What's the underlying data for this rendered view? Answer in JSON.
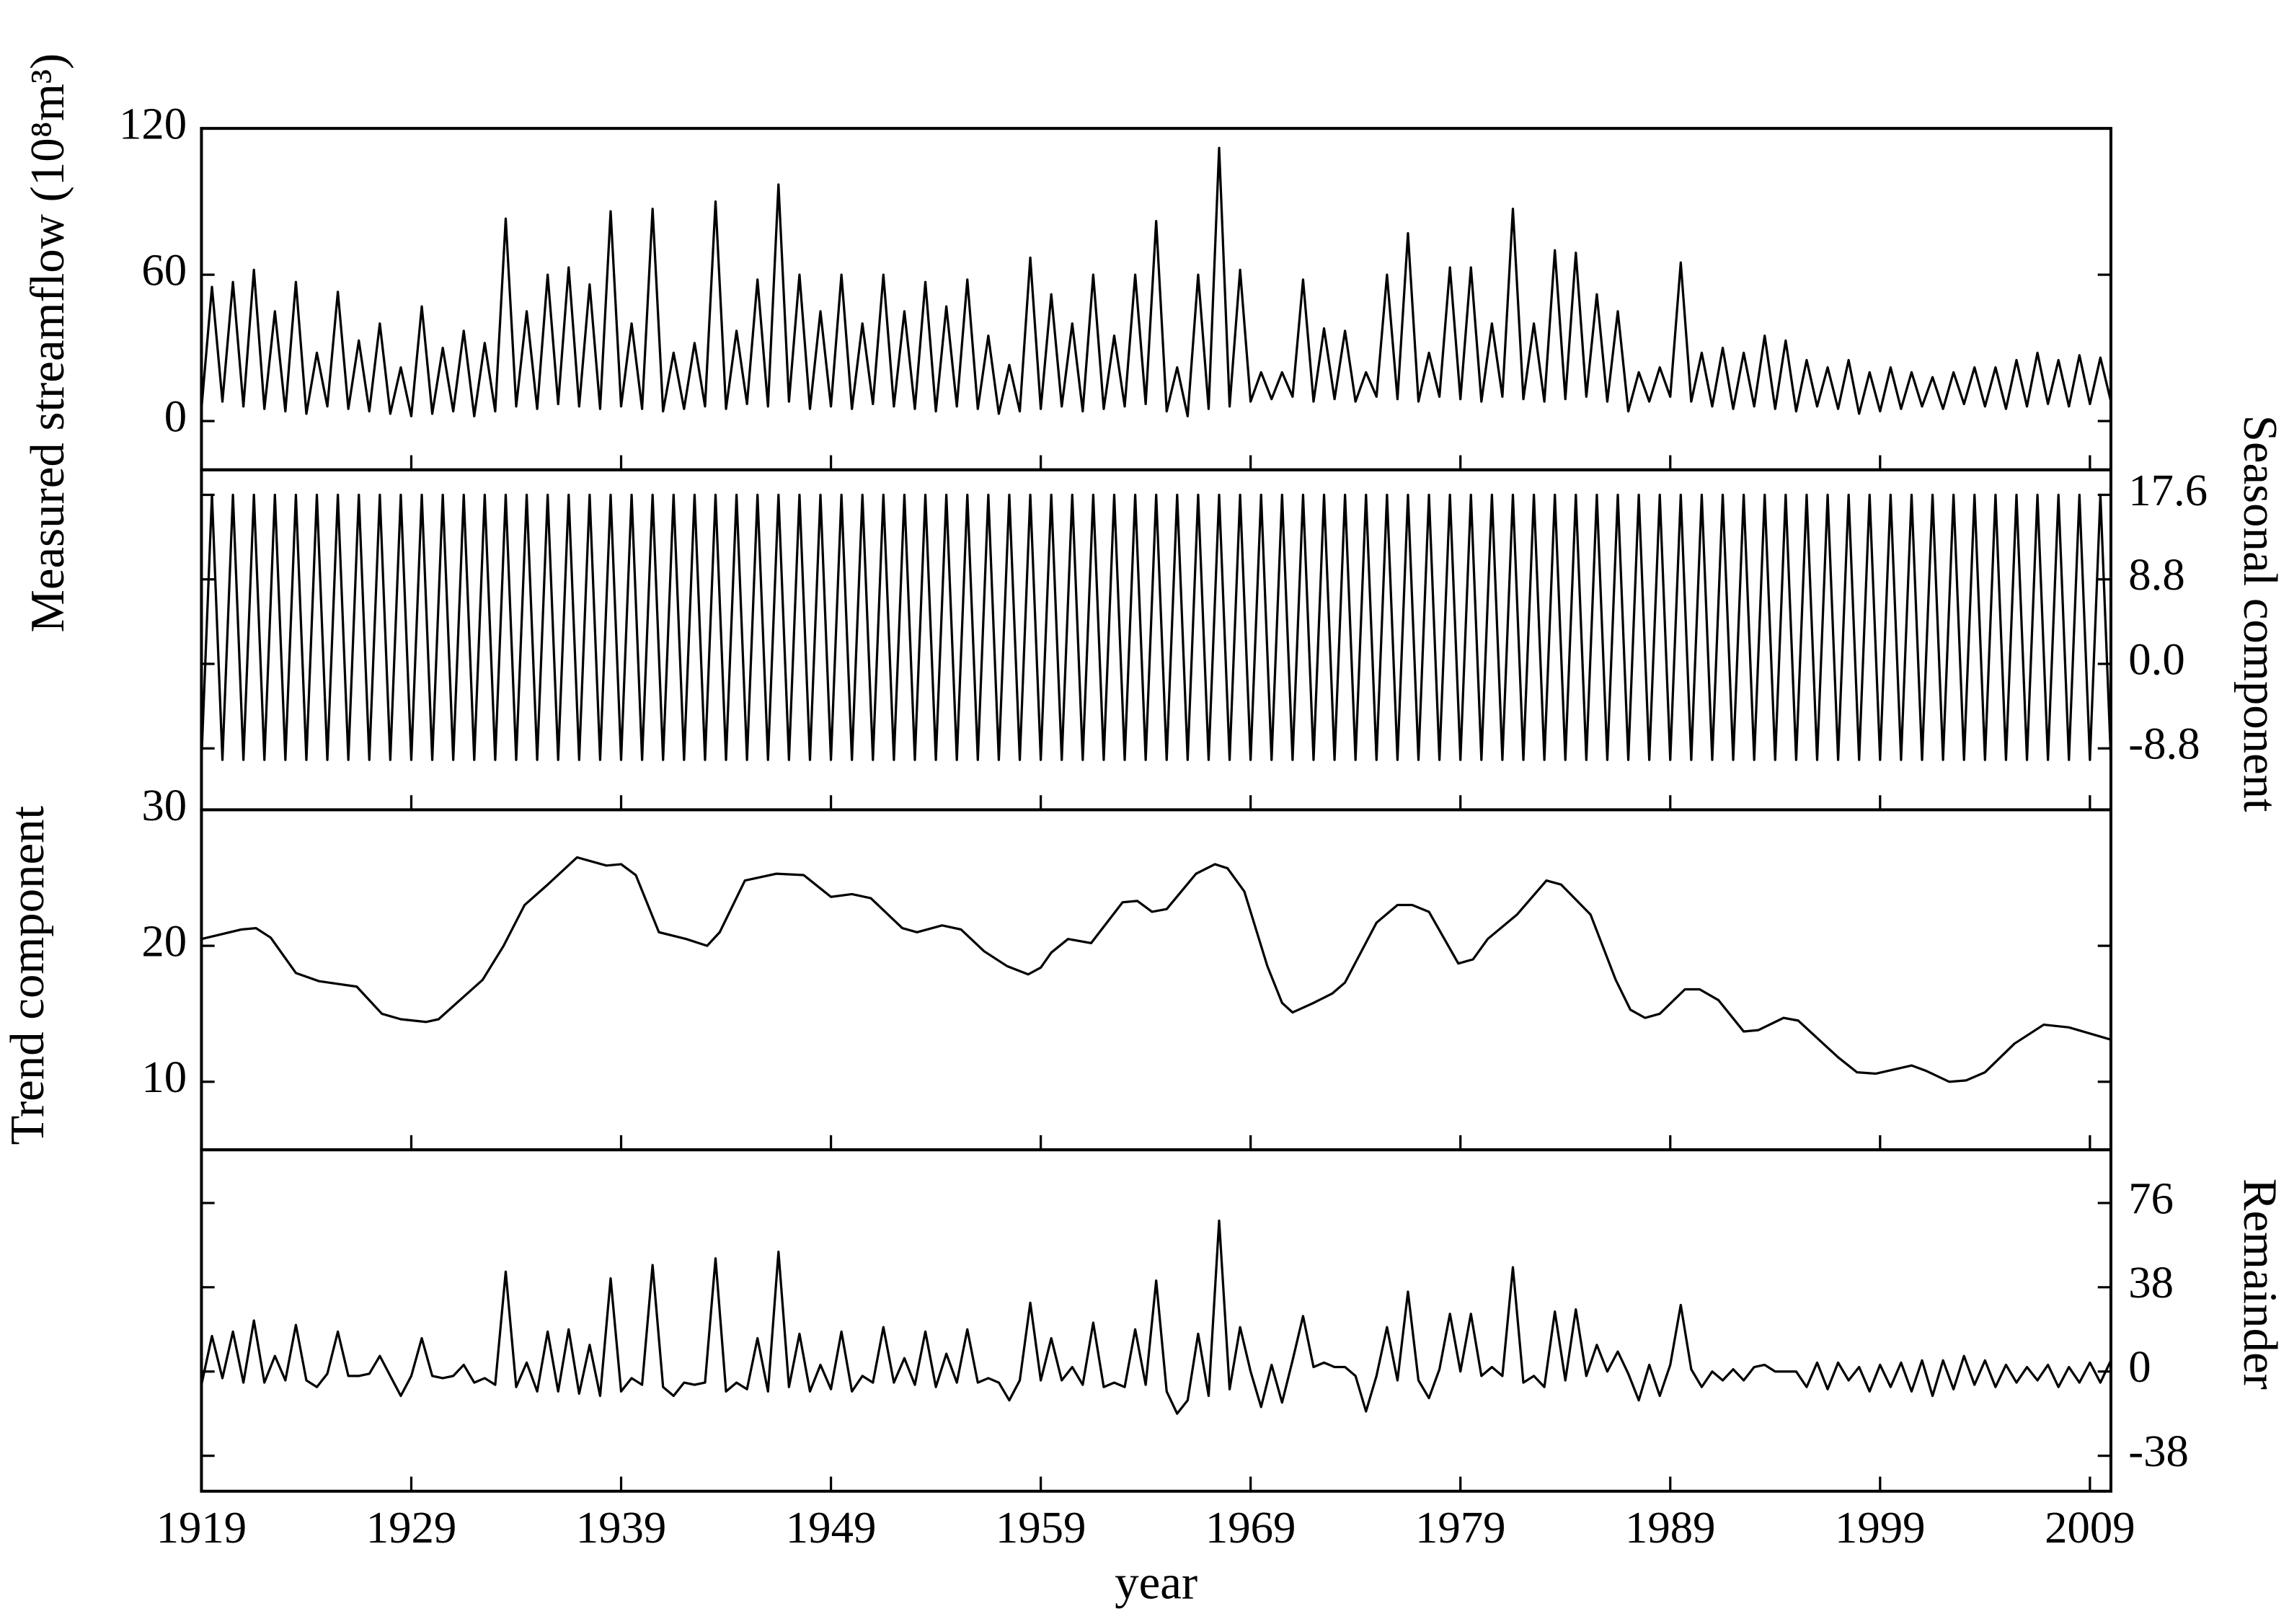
{
  "chart_data": [
    {
      "type": "line",
      "ylabel": "Measured streamflow (10⁸m³)",
      "yaxis": "left",
      "color": "#000000",
      "xlim": [
        1919,
        2010
      ],
      "ylim": [
        -20,
        120
      ],
      "yticks": [
        0,
        60,
        120
      ],
      "x": [
        1919,
        1919.5,
        1920,
        1920.5,
        1921,
        1921.5,
        1922,
        1922.5,
        1923,
        1923.5,
        1924,
        1924.5,
        1925,
        1925.5,
        1926,
        1926.5,
        1927,
        1927.5,
        1928,
        1928.5,
        1929,
        1929.5,
        1930,
        1930.5,
        1931,
        1931.5,
        1932,
        1932.5,
        1933,
        1933.5,
        1934,
        1934.5,
        1935,
        1935.5,
        1936,
        1936.5,
        1937,
        1937.5,
        1938,
        1938.5,
        1939,
        1939.5,
        1940,
        1940.5,
        1941,
        1941.5,
        1942,
        1942.5,
        1943,
        1943.5,
        1944,
        1944.5,
        1945,
        1945.5,
        1946,
        1946.5,
        1947,
        1947.5,
        1948,
        1948.5,
        1949,
        1949.5,
        1950,
        1950.5,
        1951,
        1951.5,
        1952,
        1952.5,
        1953,
        1953.5,
        1954,
        1954.5,
        1955,
        1955.5,
        1956,
        1956.5,
        1957,
        1957.5,
        1958,
        1958.5,
        1959,
        1959.5,
        1960,
        1960.5,
        1961,
        1961.5,
        1962,
        1962.5,
        1963,
        1963.5,
        1964,
        1964.5,
        1965,
        1965.5,
        1966,
        1966.5,
        1967,
        1967.5,
        1968,
        1968.5,
        1969,
        1969.5,
        1970,
        1970.5,
        1971,
        1971.5,
        1972,
        1972.5,
        1973,
        1973.5,
        1974,
        1974.5,
        1975,
        1975.5,
        1976,
        1976.5,
        1977,
        1977.5,
        1978,
        1978.5,
        1979,
        1979.5,
        1980,
        1980.5,
        1981,
        1981.5,
        1982,
        1982.5,
        1983,
        1983.5,
        1984,
        1984.5,
        1985,
        1985.5,
        1986,
        1986.5,
        1987,
        1987.5,
        1988,
        1988.5,
        1989,
        1989.5,
        1990,
        1990.5,
        1991,
        1991.5,
        1992,
        1992.5,
        1993,
        1993.5,
        1994,
        1994.5,
        1995,
        1995.5,
        1996,
        1996.5,
        1997,
        1997.5,
        1998,
        1998.5,
        1999,
        1999.5,
        2000,
        2000.5,
        2001,
        2001.5,
        2002,
        2002.5,
        2003,
        2003.5,
        2004,
        2004.5,
        2005,
        2005.5,
        2006,
        2006.5,
        2007,
        2007.5,
        2008,
        2008.5,
        2009,
        2009.5,
        2010
      ],
      "values": [
        5,
        55,
        8,
        57,
        6,
        62,
        5,
        45,
        4,
        57,
        3,
        28,
        6,
        53,
        5,
        33,
        4,
        40,
        3,
        22,
        2,
        47,
        3,
        30,
        4,
        37,
        2,
        32,
        4,
        83,
        6,
        45,
        5,
        60,
        7,
        63,
        6,
        56,
        5,
        86,
        6,
        40,
        5,
        87,
        4,
        28,
        5,
        32,
        6,
        90,
        5,
        37,
        7,
        58,
        6,
        97,
        8,
        60,
        5,
        45,
        6,
        60,
        5,
        40,
        7,
        60,
        6,
        45,
        5,
        57,
        4,
        47,
        6,
        58,
        5,
        35,
        3,
        23,
        4,
        67,
        5,
        52,
        6,
        40,
        4,
        60,
        5,
        35,
        6,
        60,
        7,
        82,
        4,
        22,
        2,
        60,
        5,
        112,
        6,
        62,
        8,
        20,
        9,
        20,
        10,
        58,
        8,
        38,
        9,
        37,
        8,
        20,
        10,
        60,
        9,
        77,
        8,
        28,
        10,
        63,
        9,
        63,
        8,
        40,
        10,
        87,
        9,
        40,
        8,
        70,
        9,
        69,
        10,
        52,
        8,
        45,
        4,
        20,
        8,
        22,
        10,
        65,
        8,
        28,
        6,
        30,
        5,
        28,
        6,
        35,
        5,
        33,
        4,
        25,
        6,
        22,
        5,
        25,
        3,
        20,
        4,
        22,
        5,
        20,
        6,
        18,
        5,
        20,
        7,
        22,
        6,
        22,
        5,
        25,
        6,
        28,
        7,
        25,
        6,
        27,
        7,
        26,
        8
      ]
    },
    {
      "type": "line",
      "ylabel": "Seasonal component",
      "yaxis": "right",
      "color": "#000000",
      "xlim": [
        1919,
        2010
      ],
      "ylim": [
        -15.2,
        20.2
      ],
      "yticks": [
        -8.8,
        {
          "value": 0,
          "label": "0.0"
        },
        8.8,
        17.6
      ],
      "x": [
        1919,
        1919.5,
        1920,
        1920.5,
        1921,
        1921.5,
        1922,
        1922.5,
        1923,
        1923.5,
        1924,
        1924.5,
        1925,
        1925.5,
        1926,
        1926.5,
        1927,
        1927.5,
        1928,
        1928.5,
        1929,
        1929.5,
        1930,
        1930.5,
        1931,
        1931.5,
        1932,
        1932.5,
        1933,
        1933.5,
        1934,
        1934.5,
        1935,
        1935.5,
        1936,
        1936.5,
        1937,
        1937.5,
        1938,
        1938.5,
        1939,
        1939.5,
        1940,
        1940.5,
        1941,
        1941.5,
        1942,
        1942.5,
        1943,
        1943.5,
        1944,
        1944.5,
        1945,
        1945.5,
        1946,
        1946.5,
        1947,
        1947.5,
        1948,
        1948.5,
        1949,
        1949.5,
        1950,
        1950.5,
        1951,
        1951.5,
        1952,
        1952.5,
        1953,
        1953.5,
        1954,
        1954.5,
        1955,
        1955.5,
        1956,
        1956.5,
        1957,
        1957.5,
        1958,
        1958.5,
        1959,
        1959.5,
        1960,
        1960.5,
        1961,
        1961.5,
        1962,
        1962.5,
        1963,
        1963.5,
        1964,
        1964.5,
        1965,
        1965.5,
        1966,
        1966.5,
        1967,
        1967.5,
        1968,
        1968.5,
        1969,
        1969.5,
        1970,
        1970.5,
        1971,
        1971.5,
        1972,
        1972.5,
        1973,
        1973.5,
        1974,
        1974.5,
        1975,
        1975.5,
        1976,
        1976.5,
        1977,
        1977.5,
        1978,
        1978.5,
        1979,
        1979.5,
        1980,
        1980.5,
        1981,
        1981.5,
        1982,
        1982.5,
        1983,
        1983.5,
        1984,
        1984.5,
        1985,
        1985.5,
        1986,
        1986.5,
        1987,
        1987.5,
        1988,
        1988.5,
        1989,
        1989.5,
        1990,
        1990.5,
        1991,
        1991.5,
        1992,
        1992.5,
        1993,
        1993.5,
        1994,
        1994.5,
        1995,
        1995.5,
        1996,
        1996.5,
        1997,
        1997.5,
        1998,
        1998.5,
        1999,
        1999.5,
        2000,
        2000.5,
        2001,
        2001.5,
        2002,
        2002.5,
        2003,
        2003.5,
        2004,
        2004.5,
        2005,
        2005.5,
        2006,
        2006.5,
        2007,
        2007.5,
        2008,
        2008.5,
        2009,
        2009.5,
        2010
      ],
      "values": [
        -10,
        17.6,
        -10,
        17.6,
        -10,
        17.6,
        -10,
        17.6,
        -10,
        17.6,
        -10,
        17.6,
        -10,
        17.6,
        -10,
        17.6,
        -10,
        17.6,
        -10,
        17.6,
        -10,
        17.6,
        -10,
        17.6,
        -10,
        17.6,
        -10,
        17.6,
        -10,
        17.6,
        -10,
        17.6,
        -10,
        17.6,
        -10,
        17.6,
        -10,
        17.6,
        -10,
        17.6,
        -10,
        17.6,
        -10,
        17.6,
        -10,
        17.6,
        -10,
        17.6,
        -10,
        17.6,
        -10,
        17.6,
        -10,
        17.6,
        -10,
        17.6,
        -10,
        17.6,
        -10,
        17.6,
        -10,
        17.6,
        -10,
        17.6,
        -10,
        17.6,
        -10,
        17.6,
        -10,
        17.6,
        -10,
        17.6,
        -10,
        17.6,
        -10,
        17.6,
        -10,
        17.6,
        -10,
        17.6,
        -10,
        17.6,
        -10,
        17.6,
        -10,
        17.6,
        -10,
        17.6,
        -10,
        17.6,
        -10,
        17.6,
        -10,
        17.6,
        -10,
        17.6,
        -10,
        17.6,
        -10,
        17.6,
        -10,
        17.6,
        -10,
        17.6,
        -10,
        17.6,
        -10,
        17.6,
        -10,
        17.6,
        -10,
        17.6,
        -10,
        17.6,
        -10,
        17.6,
        -10,
        17.6,
        -10,
        17.6,
        -10,
        17.6,
        -10,
        17.6,
        -10,
        17.6,
        -10,
        17.6,
        -10,
        17.6,
        -10,
        17.6,
        -10,
        17.6,
        -10,
        17.6,
        -10,
        17.6,
        -10,
        17.6,
        -10,
        17.6,
        -10,
        17.6,
        -10,
        17.6,
        -10,
        17.6,
        -10,
        17.6,
        -10,
        17.6,
        -10,
        17.6,
        -10,
        17.6,
        -10,
        17.6,
        -10,
        17.6,
        -10,
        17.6,
        -10,
        17.6,
        -10,
        17.6,
        -10,
        17.6,
        -10,
        17.6,
        -10,
        17.6,
        -10,
        17.6,
        -10,
        17.6,
        -10,
        17.6,
        -10,
        17.6,
        -10,
        17.6,
        -10
      ]
    },
    {
      "type": "line",
      "ylabel": "Trend component",
      "yaxis": "left",
      "color": "#000000",
      "xlim": [
        1919,
        2010
      ],
      "ylim": [
        5,
        30
      ],
      "yticks": [
        10,
        20,
        30
      ],
      "x": [
        1919,
        1920.9,
        1921.6,
        1922.3,
        1923.5,
        1924.6,
        1926.4,
        1927.6,
        1928.5,
        1929.7,
        1930.3,
        1932.4,
        1933.4,
        1934.4,
        1935.5,
        1936.9,
        1938.3,
        1939,
        1939.7,
        1940.8,
        1942.1,
        1943.1,
        1943.7,
        1944.9,
        1946.4,
        1947.7,
        1949,
        1950,
        1950.9,
        1952.4,
        1953.1,
        1954.3,
        1955.2,
        1956.3,
        1957.4,
        1958.4,
        1959,
        1959.5,
        1960.3,
        1961.4,
        1962.9,
        1963.6,
        1964.3,
        1965,
        1966.4,
        1967.3,
        1967.9,
        1968.7,
        1969.8,
        1970.5,
        1971,
        1972,
        1972.9,
        1973.5,
        1975,
        1976,
        1976.7,
        1977.5,
        1978.9,
        1979.6,
        1980.3,
        1981.7,
        1983.1,
        1983.8,
        1985.2,
        1986.4,
        1987.1,
        1987.8,
        1988.5,
        1989.7,
        1990.4,
        1991.3,
        1992.5,
        1993.2,
        1994.4,
        1995.1,
        1997,
        1997.9,
        1998.8,
        2000.5,
        2001.2,
        2002.3,
        2003.1,
        2004,
        2005.4,
        2006.8,
        2008,
        2010
      ],
      "values": [
        20.5,
        21.2,
        21.3,
        20.6,
        18,
        17.4,
        17,
        15,
        14.6,
        14.4,
        14.6,
        17.5,
        20,
        23,
        24.5,
        26.5,
        25.9,
        26,
        25.2,
        21,
        20.5,
        20,
        21,
        24.8,
        25.3,
        25.2,
        23.6,
        23.8,
        23.5,
        21.3,
        21,
        21.5,
        21.2,
        19.6,
        18.5,
        17.9,
        18.4,
        19.5,
        20.5,
        20.2,
        23.2,
        23.3,
        22.5,
        22.7,
        25.3,
        26,
        25.7,
        24,
        18.5,
        15.8,
        15.1,
        15.8,
        16.5,
        17.3,
        21.7,
        23,
        23,
        22.5,
        18.7,
        19,
        20.5,
        22.3,
        24.8,
        24.5,
        22.3,
        17.5,
        15.3,
        14.7,
        15,
        16.8,
        16.8,
        16,
        13.7,
        13.8,
        14.7,
        14.5,
        11.8,
        10.7,
        10.6,
        11.2,
        10.8,
        10,
        10.1,
        10.7,
        12.8,
        14.2,
        14,
        13.1
      ]
    },
    {
      "type": "line",
      "ylabel": "Remainder",
      "yaxis": "right",
      "color": "#000000",
      "xlabel": "year",
      "xlim": [
        1919,
        2010
      ],
      "ylim": [
        -54,
        100
      ],
      "yticks": [
        -38,
        0,
        38,
        76
      ],
      "xticks": [
        1919,
        1929,
        1939,
        1949,
        1959,
        1969,
        1979,
        1989,
        1999,
        2009
      ],
      "x": [
        1919,
        1919.5,
        1920,
        1920.5,
        1921,
        1921.5,
        1922,
        1922.5,
        1923,
        1923.5,
        1924,
        1924.5,
        1925,
        1925.5,
        1926,
        1926.5,
        1927,
        1927.5,
        1928,
        1928.5,
        1929,
        1929.5,
        1930,
        1930.5,
        1931,
        1931.5,
        1932,
        1932.5,
        1933,
        1933.5,
        1934,
        1934.5,
        1935,
        1935.5,
        1936,
        1936.5,
        1937,
        1937.5,
        1938,
        1938.5,
        1939,
        1939.5,
        1940,
        1940.5,
        1941,
        1941.5,
        1942,
        1942.5,
        1943,
        1943.5,
        1944,
        1944.5,
        1945,
        1945.5,
        1946,
        1946.5,
        1947,
        1947.5,
        1948,
        1948.5,
        1949,
        1949.5,
        1950,
        1950.5,
        1951,
        1951.5,
        1952,
        1952.5,
        1953,
        1953.5,
        1954,
        1954.5,
        1955,
        1955.5,
        1956,
        1956.5,
        1957,
        1957.5,
        1958,
        1958.5,
        1959,
        1959.5,
        1960,
        1960.5,
        1961,
        1961.5,
        1962,
        1962.5,
        1963,
        1963.5,
        1964,
        1964.5,
        1965,
        1965.5,
        1966,
        1966.5,
        1967,
        1967.5,
        1968,
        1968.5,
        1969,
        1969.5,
        1970,
        1970.5,
        1971,
        1971.5,
        1972,
        1972.5,
        1973,
        1973.5,
        1974,
        1974.5,
        1975,
        1975.5,
        1976,
        1976.5,
        1977,
        1977.5,
        1978,
        1978.5,
        1979,
        1979.5,
        1980,
        1980.5,
        1981,
        1981.5,
        1982,
        1982.5,
        1983,
        1983.5,
        1984,
        1984.5,
        1985,
        1985.5,
        1986,
        1986.5,
        1987,
        1987.5,
        1988,
        1988.5,
        1989,
        1989.5,
        1990,
        1990.5,
        1991,
        1991.5,
        1992,
        1992.5,
        1993,
        1993.5,
        1994,
        1994.5,
        1995,
        1995.5,
        1996,
        1996.5,
        1997,
        1997.5,
        1998,
        1998.5,
        1999,
        1999.5,
        2000,
        2000.5,
        2001,
        2001.5,
        2002,
        2002.5,
        2003,
        2003.5,
        2004,
        2004.5,
        2005,
        2005.5,
        2006,
        2006.5,
        2007,
        2007.5,
        2008,
        2008.5,
        2009,
        2009.5,
        2010
      ],
      "values": [
        -6,
        16,
        -3,
        18,
        -5,
        23,
        -5,
        7,
        -4,
        21,
        -4,
        -7,
        -1,
        18,
        -2,
        -2,
        -1,
        7,
        -2,
        -11,
        -2,
        15,
        -2,
        -3,
        -2,
        3,
        -5,
        -3,
        -6,
        45,
        -7,
        4,
        -9,
        18,
        -9,
        19,
        -10,
        12,
        -11,
        42,
        -9,
        -3,
        -6,
        48,
        -7,
        -11,
        -5,
        -6,
        -5,
        51,
        -9,
        -5,
        -8,
        15,
        -9,
        54,
        -7,
        17,
        -9,
        3,
        -8,
        18,
        -9,
        -2,
        -5,
        20,
        -5,
        6,
        -6,
        18,
        -7,
        8,
        -5,
        19,
        -5,
        -3,
        -5,
        -13,
        -4,
        31,
        -4,
        15,
        -4,
        2,
        -6,
        22,
        -7,
        -5,
        -7,
        19,
        -6,
        41,
        -9,
        -19,
        -13,
        17,
        -11,
        68,
        -8,
        20,
        0,
        -16,
        3,
        -14,
        5,
        25,
        2,
        4,
        2,
        2,
        -2,
        -18,
        -2,
        20,
        -4,
        36,
        -4,
        -12,
        1,
        26,
        0,
        26,
        -2,
        2,
        -2,
        47,
        -5,
        -2,
        -7,
        27,
        -4,
        28,
        -2,
        12,
        0,
        9,
        -1,
        -13,
        3,
        -11,
        3,
        30,
        1,
        -7,
        0,
        -4,
        1,
        -4,
        2,
        3,
        0,
        0,
        0,
        -7,
        4,
        -8,
        4,
        -4,
        2,
        -9,
        3,
        -7,
        4,
        -9,
        5,
        -11,
        5,
        -8,
        7,
        -6,
        5,
        -7,
        3,
        -5,
        2,
        -4,
        3,
        -7,
        2,
        -5,
        4,
        -5,
        5
      ]
    }
  ]
}
